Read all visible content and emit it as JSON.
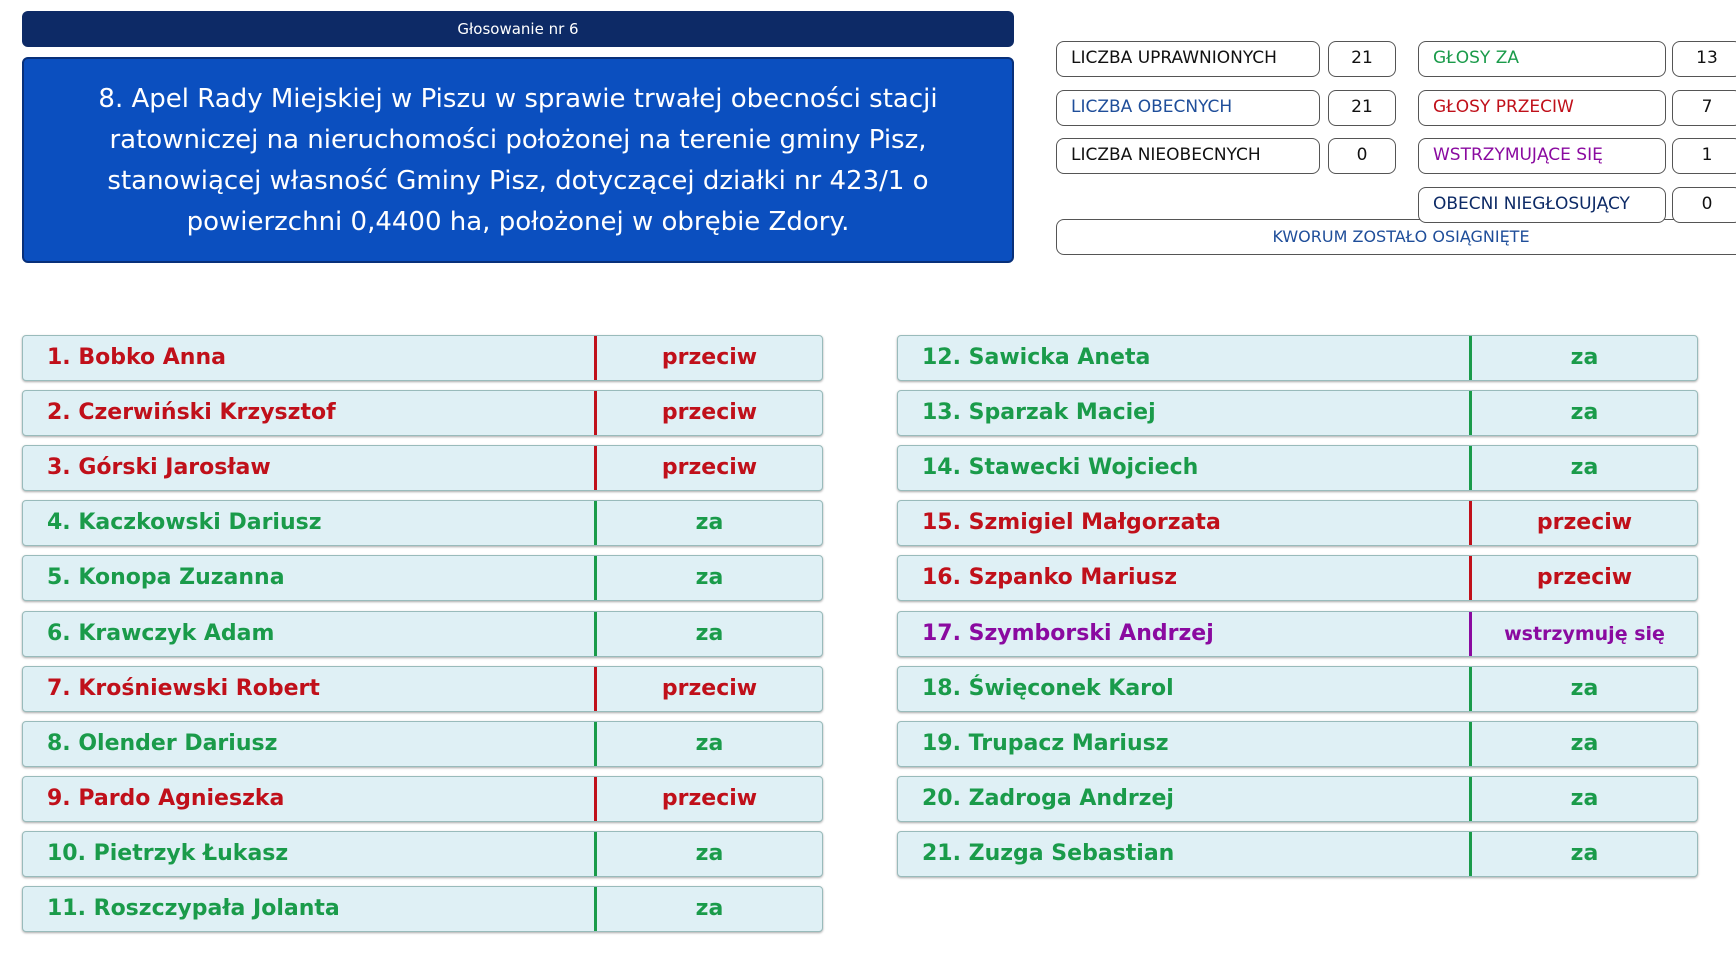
{
  "header": {
    "title": "Głosowanie nr 6"
  },
  "motion": "8. Apel Rady Miejskiej w Piszu w sprawie trwałej obecności stacji ratowniczej na nieruchomości położonej na terenie gminy Pisz, stanowiącej własność Gminy Pisz, dotyczącej działki nr 423/1 o powierzchni 0,4400 ha, położonej w obrębie Zdory.",
  "stats": {
    "left": [
      {
        "label": "LICZBA UPRAWNIONYCH",
        "value": "21",
        "color": "#111111"
      },
      {
        "label": "LICZBA OBECNYCH",
        "value": "21",
        "color": "#1f4e9a"
      },
      {
        "label": "LICZBA NIEOBECNYCH",
        "value": "0",
        "color": "#111111"
      }
    ],
    "right": [
      {
        "label": "GŁOSY ZA",
        "value": "13",
        "color": "#1a9b4a"
      },
      {
        "label": "GŁOSY PRZECIW",
        "value": "7",
        "color": "#c0101a"
      },
      {
        "label": "WSTRZYMUJĄCE SIĘ",
        "value": "1",
        "color": "#8a0aa0"
      },
      {
        "label": "OBECNI NIEGŁOSUJĄCY",
        "value": "0",
        "color": "#0d2a66"
      }
    ]
  },
  "quorum": "KWORUM ZOSTAŁO OSIĄGNIĘTE",
  "voters": [
    {
      "name": "1. Bobko Anna",
      "vote": "przeciw",
      "color": "#c0101a"
    },
    {
      "name": "2. Czerwiński Krzysztof",
      "vote": "przeciw",
      "color": "#c0101a"
    },
    {
      "name": "3. Górski Jarosław",
      "vote": "przeciw",
      "color": "#c0101a"
    },
    {
      "name": "4. Kaczkowski Dariusz",
      "vote": "za",
      "color": "#1a9b4a"
    },
    {
      "name": "5. Konopa Zuzanna",
      "vote": "za",
      "color": "#1a9b4a"
    },
    {
      "name": "6. Krawczyk Adam",
      "vote": "za",
      "color": "#1a9b4a"
    },
    {
      "name": "7. Krośniewski Robert",
      "vote": "przeciw",
      "color": "#c0101a"
    },
    {
      "name": "8. Olender Dariusz",
      "vote": "za",
      "color": "#1a9b4a"
    },
    {
      "name": "9. Pardo Agnieszka",
      "vote": "przeciw",
      "color": "#c0101a"
    },
    {
      "name": "10. Pietrzyk Łukasz",
      "vote": "za",
      "color": "#1a9b4a"
    },
    {
      "name": "11. Roszczypała Jolanta",
      "vote": "za",
      "color": "#1a9b4a"
    },
    {
      "name": "12. Sawicka Aneta",
      "vote": "za",
      "color": "#1a9b4a"
    },
    {
      "name": "13. Sparzak Maciej",
      "vote": "za",
      "color": "#1a9b4a"
    },
    {
      "name": "14. Stawecki Wojciech",
      "vote": "za",
      "color": "#1a9b4a"
    },
    {
      "name": "15. Szmigiel Małgorzata",
      "vote": "przeciw",
      "color": "#c0101a"
    },
    {
      "name": "16. Szpanko Mariusz",
      "vote": "przeciw",
      "color": "#c0101a"
    },
    {
      "name": "17. Szymborski Andrzej",
      "vote": "wstrzymuję się",
      "color": "#8a0aa0"
    },
    {
      "name": "18. Święconek Karol",
      "vote": "za",
      "color": "#1a9b4a"
    },
    {
      "name": "19. Trupacz Mariusz",
      "vote": "za",
      "color": "#1a9b4a"
    },
    {
      "name": "20. Zadroga Andrzej",
      "vote": "za",
      "color": "#1a9b4a"
    },
    {
      "name": "21. Zuzga Sebastian",
      "vote": "za",
      "color": "#1a9b4a"
    }
  ]
}
